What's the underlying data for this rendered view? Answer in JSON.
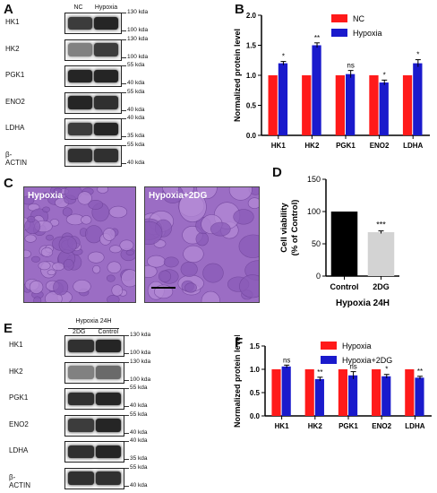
{
  "panels": {
    "A": {
      "letter": "A",
      "lanes": [
        "NC",
        "Hypoxia"
      ],
      "rows": [
        {
          "label": "HK1",
          "kda": [
            "130 kda",
            "100 kda"
          ],
          "intensity": [
            0.85,
            0.95
          ]
        },
        {
          "label": "HK2",
          "kda": [
            "130 kda",
            "100 kda"
          ],
          "intensity": [
            0.55,
            0.85
          ]
        },
        {
          "label": "PGK1",
          "kda": [
            "55 kda",
            "40 kda"
          ],
          "intensity": [
            0.95,
            0.95
          ]
        },
        {
          "label": "ENO2",
          "kda": [
            "55 kda",
            "40 kda"
          ],
          "intensity": [
            0.95,
            0.9
          ]
        },
        {
          "label": "LDHA",
          "kda": [
            "40 kda",
            "35 kda"
          ],
          "intensity": [
            0.85,
            0.95
          ]
        },
        {
          "label": "β-ACTIN",
          "kda": [
            "55 kda",
            "40 kda"
          ],
          "intensity": [
            0.9,
            0.9
          ]
        }
      ]
    },
    "C": {
      "letter": "C",
      "images": [
        "Hypoxia",
        "Hypoxia+2DG"
      ]
    },
    "E": {
      "letter": "E",
      "header": "Hypoxia 24H",
      "lanes": [
        "2DG",
        "Control"
      ],
      "rows": [
        {
          "label": "HK1",
          "kda": [
            "130 kda",
            "100 kda"
          ],
          "intensity": [
            0.9,
            0.95
          ]
        },
        {
          "label": "HK2",
          "kda": [
            "130 kda",
            "100 kda"
          ],
          "intensity": [
            0.55,
            0.65
          ]
        },
        {
          "label": "PGK1",
          "kda": [
            "55 kda",
            "40 kda"
          ],
          "intensity": [
            0.9,
            0.95
          ]
        },
        {
          "label": "ENO2",
          "kda": [
            "55 kda",
            "40 kda"
          ],
          "intensity": [
            0.85,
            0.95
          ]
        },
        {
          "label": "LDHA",
          "kda": [
            "40 kda",
            "35 kda"
          ],
          "intensity": [
            0.9,
            0.95
          ]
        },
        {
          "label": "β-ACTIN",
          "kda": [
            "55 kda",
            "40 kda"
          ],
          "intensity": [
            0.9,
            0.9
          ]
        }
      ]
    }
  },
  "chart_data": [
    {
      "panel": "B",
      "type": "bar",
      "title": "",
      "xlabel": "",
      "ylabel": "Normalized protein level",
      "categories": [
        "HK1",
        "HK2",
        "PGK1",
        "ENO2",
        "LDHA"
      ],
      "series": [
        {
          "name": "NC",
          "color": "#ff1a1a",
          "values": [
            1.0,
            1.0,
            1.0,
            1.0,
            1.0
          ],
          "errors": [
            0,
            0,
            0,
            0,
            0
          ]
        },
        {
          "name": "Hypoxia",
          "color": "#1a1acc",
          "values": [
            1.2,
            1.5,
            1.02,
            0.88,
            1.2
          ],
          "errors": [
            0.03,
            0.04,
            0.06,
            0.04,
            0.06
          ]
        }
      ],
      "significance": [
        "*",
        "**",
        "ns",
        "*",
        "*"
      ],
      "ylim": [
        0,
        2.0
      ],
      "yticks": [
        "0.0",
        "0.5",
        "1.0",
        "1.5",
        "2.0"
      ],
      "legend": "top-right"
    },
    {
      "panel": "D",
      "type": "bar",
      "title": "",
      "xlabel": "Hypoxia 24H",
      "ylabel": "Cell viability\n(% of Control)",
      "categories": [
        "Control",
        "2DG"
      ],
      "values": [
        100,
        68
      ],
      "errors": [
        0,
        2
      ],
      "colors": [
        "#000000",
        "#d3d3d3"
      ],
      "significance": [
        "",
        "***"
      ],
      "ylim": [
        0,
        150
      ],
      "yticks": [
        "0",
        "50",
        "100",
        "150"
      ]
    },
    {
      "panel": "F",
      "type": "bar",
      "title": "",
      "xlabel": "",
      "ylabel": "Normalized protein level",
      "categories": [
        "HK1",
        "HK2",
        "PGK1",
        "ENO2",
        "LDHA"
      ],
      "series": [
        {
          "name": "Hypoxia",
          "color": "#ff1a1a",
          "values": [
            1.0,
            1.0,
            1.0,
            1.0,
            1.0
          ],
          "errors": [
            0,
            0,
            0,
            0,
            0
          ]
        },
        {
          "name": "Hypoxia+2DG",
          "color": "#1a1acc",
          "values": [
            1.06,
            0.79,
            0.87,
            0.85,
            0.82
          ],
          "errors": [
            0.03,
            0.04,
            0.08,
            0.04,
            0.03
          ]
        }
      ],
      "significance": [
        "ns",
        "**",
        "ns",
        "*",
        "**"
      ],
      "ylim": [
        0,
        1.5
      ],
      "yticks": [
        "0.0",
        "0.5",
        "1.0",
        "1.5"
      ],
      "legend": "top-right"
    }
  ]
}
